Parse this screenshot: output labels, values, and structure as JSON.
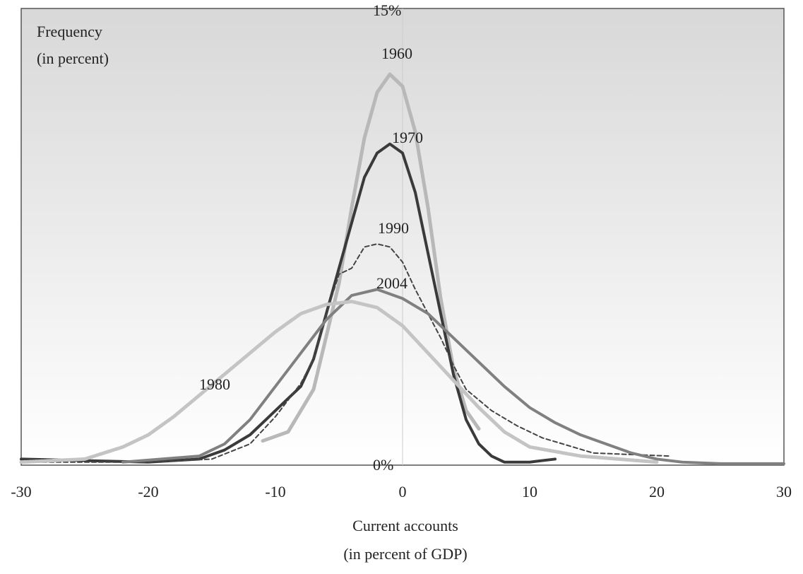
{
  "chart_data": {
    "type": "line",
    "ylabel": [
      "Frequency",
      "(in percent)"
    ],
    "xlabel": [
      "Current accounts",
      "(in percent of GDP)"
    ],
    "xlim": [
      -30,
      30
    ],
    "xticks": [
      -30,
      -20,
      -10,
      0,
      10,
      20,
      30
    ],
    "ylim": [
      0,
      15
    ],
    "yticks": [
      {
        "value": 0,
        "label": "0%"
      },
      {
        "value": 15,
        "label": "15%"
      }
    ],
    "series": [
      {
        "name": "1960",
        "color": "#b8b8b8",
        "style": "solid",
        "width": 5,
        "x": [
          -11,
          -9,
          -7,
          -5,
          -4,
          -3,
          -2,
          -1,
          0,
          1,
          2,
          3,
          4,
          5,
          6
        ],
        "values": [
          0.8,
          1.1,
          2.5,
          6,
          8.5,
          10.8,
          12.3,
          12.9,
          12.5,
          11,
          8.5,
          5.5,
          3.2,
          1.8,
          1.2
        ]
      },
      {
        "name": "1970",
        "color": "#3a3a3a",
        "style": "solid",
        "width": 4,
        "x": [
          -30,
          -20,
          -16,
          -14,
          -12,
          -10,
          -8,
          -7,
          -6,
          -5,
          -4,
          -3,
          -2,
          -1,
          0,
          1,
          2,
          3,
          4,
          5,
          6,
          7,
          8,
          10,
          12
        ],
        "values": [
          0.2,
          0.1,
          0.2,
          0.5,
          1.0,
          1.8,
          2.6,
          3.5,
          5,
          6.5,
          8,
          9.5,
          10.3,
          10.6,
          10.3,
          9,
          7,
          5,
          3,
          1.5,
          0.7,
          0.3,
          0.1,
          0.1,
          0.2
        ]
      },
      {
        "name": "1990",
        "color": "#444444",
        "style": "dashed",
        "width": 2,
        "x": [
          -30,
          -20,
          -15,
          -12,
          -10,
          -8,
          -7,
          -6,
          -5,
          -4,
          -3,
          -2,
          -1,
          0,
          1,
          2,
          3,
          4,
          5,
          7,
          9,
          11,
          15,
          21
        ],
        "values": [
          0.1,
          0.1,
          0.2,
          0.7,
          1.6,
          2.7,
          3.5,
          5,
          6.3,
          6.5,
          7.2,
          7.3,
          7.2,
          6.7,
          5.8,
          5,
          4.2,
          3.3,
          2.5,
          1.8,
          1.3,
          0.9,
          0.4,
          0.3
        ]
      },
      {
        "name": "2004",
        "color": "#808080",
        "style": "solid",
        "width": 4,
        "x": [
          -22,
          -16,
          -14,
          -12,
          -10,
          -8,
          -6,
          -4,
          -2,
          0,
          2,
          4,
          6,
          8,
          10,
          12,
          14,
          16,
          18,
          20,
          22,
          25,
          30
        ],
        "values": [
          0.1,
          0.3,
          0.7,
          1.5,
          2.6,
          3.7,
          4.8,
          5.6,
          5.8,
          5.5,
          5,
          4.2,
          3.4,
          2.6,
          1.9,
          1.4,
          1.0,
          0.7,
          0.4,
          0.2,
          0.1,
          0.05,
          0.05
        ]
      },
      {
        "name": "1980",
        "color": "#c4c4c4",
        "style": "dotted",
        "width": 5,
        "x": [
          -30,
          -25,
          -22,
          -20,
          -18,
          -16,
          -14,
          -12,
          -10,
          -8,
          -6,
          -4,
          -2,
          0,
          2,
          4,
          6,
          8,
          10,
          14,
          20
        ],
        "values": [
          0.1,
          0.2,
          0.6,
          1.0,
          1.6,
          2.3,
          3.0,
          3.7,
          4.4,
          5.0,
          5.3,
          5.4,
          5.2,
          4.6,
          3.7,
          2.8,
          1.9,
          1.1,
          0.6,
          0.3,
          0.1
        ]
      }
    ]
  }
}
